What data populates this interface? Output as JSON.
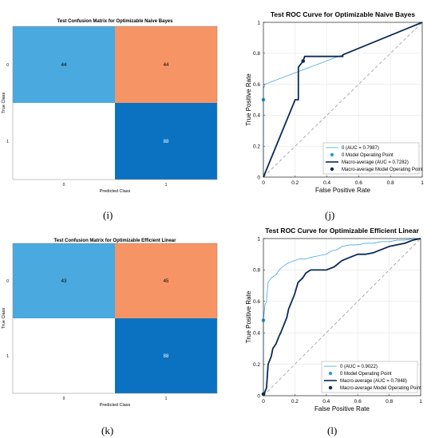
{
  "figure": {
    "panel_letters": [
      "(i)",
      "(j)",
      "(k)",
      "(l)"
    ]
  },
  "colors": {
    "cell_light_blue": "#4aa9df",
    "cell_orange": "#f79465",
    "cell_dark_blue": "#0a72c1",
    "cell_white": "#ffffff",
    "roc_light_blue": "#2b9be0",
    "roc_navy": "#0b2a55",
    "diagonal": "#9a9a9a",
    "grid": "#e6e6e6"
  },
  "chart_data": [
    {
      "type": "heatmap",
      "title": "Test Confusion Matrix for Optimizable Naive Bayes",
      "xlabel": "Predicted Class",
      "ylabel": "True Class",
      "x_categories": [
        "0",
        "1"
      ],
      "y_categories": [
        "0",
        "1"
      ],
      "values": [
        [
          44,
          44
        ],
        [
          null,
          88
        ]
      ],
      "cell_colors": [
        [
          "#4aa9df",
          "#f79465"
        ],
        [
          "#ffffff",
          "#0a72c1"
        ]
      ]
    },
    {
      "type": "line",
      "title": "Test ROC Curve for Optimizable Naive Bayes",
      "xlabel": "False Positive Rate",
      "ylabel": "True Positive Rate",
      "xlim": [
        0,
        1
      ],
      "ylim": [
        0,
        1
      ],
      "xticks": [
        "0",
        "0.2",
        "0.4",
        "0.6",
        "0.8",
        "1"
      ],
      "yticks": [
        "0",
        "0.2",
        "0.4",
        "0.6",
        "0.8",
        "1"
      ],
      "grid": true,
      "legend_position": "bottom-right",
      "series": [
        {
          "name": "0 (AUC = 0.7987)",
          "style": "thin",
          "color": "#2b9be0",
          "x": [
            0,
            0,
            0.01,
            0.5,
            1
          ],
          "y": [
            0,
            0.57,
            0.6,
            0.79,
            1
          ]
        },
        {
          "name": "0 Model Operating Point",
          "style": "marker",
          "color": "#2b9be0",
          "x": [
            0
          ],
          "y": [
            0.5
          ]
        },
        {
          "name": "Macro-average (AUC = 0.7282)",
          "style": "thick",
          "color": "#0b2a55",
          "x": [
            0,
            0.2,
            0.22,
            0.22,
            0.25,
            0.26,
            0.5,
            0.5,
            1
          ],
          "y": [
            0,
            0.5,
            0.5,
            0.71,
            0.75,
            0.78,
            0.78,
            0.79,
            1
          ]
        },
        {
          "name": "Macro-average Model Operating Point",
          "style": "marker",
          "color": "#0b2a55",
          "x": [
            0.25
          ],
          "y": [
            0.75
          ]
        }
      ]
    },
    {
      "type": "heatmap",
      "title": "Test Confusion Matrix for Optimizable Efficient Linear",
      "xlabel": "Predicted Class",
      "ylabel": "True Class",
      "x_categories": [
        "0",
        "1"
      ],
      "y_categories": [
        "0",
        "1"
      ],
      "values": [
        [
          43,
          45
        ],
        [
          null,
          88
        ]
      ],
      "cell_colors": [
        [
          "#4aa9df",
          "#f79465"
        ],
        [
          "#ffffff",
          "#0a72c1"
        ]
      ]
    },
    {
      "type": "line",
      "title": "Test ROC Curve for Optimizable Efficient Linear",
      "xlabel": "False Positive Rate",
      "ylabel": "True Positive Rate",
      "xlim": [
        0,
        1
      ],
      "ylim": [
        0,
        1
      ],
      "xticks": [
        "0",
        "0.2",
        "0.4",
        "0.6",
        "0.8",
        "1"
      ],
      "yticks": [
        "0",
        "0.2",
        "0.4",
        "0.6",
        "0.8",
        "1"
      ],
      "grid": true,
      "legend_position": "bottom-right",
      "series": [
        {
          "name": "0 (AUC = 0.9022)",
          "style": "thin",
          "color": "#2b9be0",
          "x": [
            0,
            0,
            0.01,
            0.02,
            0.03,
            0.05,
            0.08,
            0.1,
            0.12,
            0.15,
            0.17,
            0.2,
            0.23,
            0.27,
            0.3,
            0.35,
            0.4,
            0.43,
            0.47,
            0.5,
            0.55,
            0.6,
            0.65,
            0.7,
            0.75,
            0.8,
            0.85,
            0.9,
            0.95,
            1
          ],
          "y": [
            0,
            0.48,
            0.58,
            0.6,
            0.72,
            0.75,
            0.77,
            0.8,
            0.82,
            0.84,
            0.85,
            0.86,
            0.87,
            0.87,
            0.88,
            0.89,
            0.9,
            0.92,
            0.93,
            0.95,
            0.96,
            0.96,
            0.97,
            0.97,
            0.98,
            0.98,
            0.99,
            0.99,
            1,
            1
          ]
        },
        {
          "name": "0 Model Operating Point",
          "style": "marker",
          "color": "#2b9be0",
          "x": [
            0
          ],
          "y": [
            0.48
          ]
        },
        {
          "name": "Macro-average (AUC = 0.7848)",
          "style": "thick",
          "color": "#0b2a55",
          "x": [
            0,
            0.02,
            0.03,
            0.05,
            0.06,
            0.08,
            0.1,
            0.11,
            0.13,
            0.15,
            0.16,
            0.18,
            0.2,
            0.22,
            0.25,
            0.27,
            0.3,
            0.35,
            0.38,
            0.4,
            0.45,
            0.5,
            0.55,
            0.6,
            0.65,
            0.7,
            0.75,
            0.8,
            0.85,
            0.9,
            0.95,
            1
          ],
          "y": [
            0,
            0.05,
            0.2,
            0.25,
            0.3,
            0.33,
            0.38,
            0.4,
            0.45,
            0.5,
            0.55,
            0.6,
            0.65,
            0.72,
            0.75,
            0.78,
            0.8,
            0.8,
            0.8,
            0.8,
            0.82,
            0.86,
            0.88,
            0.9,
            0.9,
            0.91,
            0.93,
            0.95,
            0.96,
            0.97,
            0.99,
            1
          ]
        },
        {
          "name": "Macro-average Model Operating Point",
          "style": "marker",
          "color": "#0b2a55",
          "x": [
            0
          ],
          "y": [
            0.01
          ]
        }
      ]
    }
  ]
}
